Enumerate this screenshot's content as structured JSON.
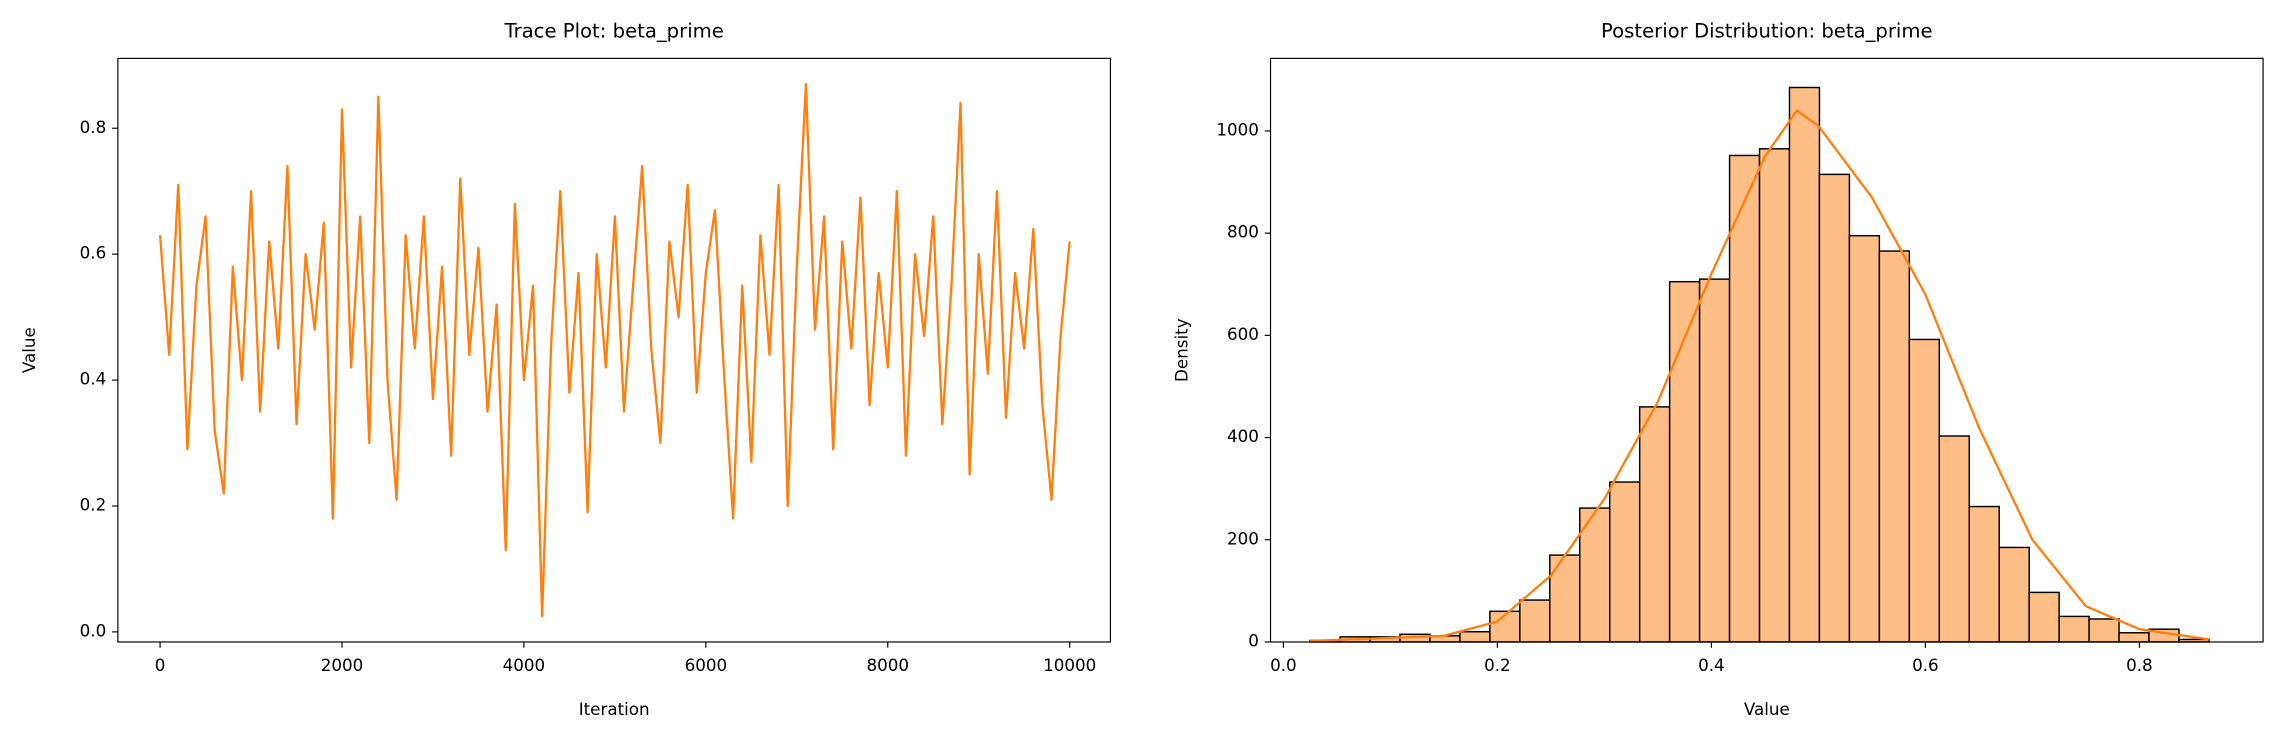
{
  "chart_data": [
    {
      "type": "line",
      "title": "Trace Plot: beta_prime",
      "xlabel": "Iteration",
      "ylabel": "Value",
      "xlim": [
        -464,
        10448
      ],
      "ylim": [
        -0.016,
        0.911
      ],
      "xticks": [
        0,
        2000,
        4000,
        6000,
        8000,
        10000
      ],
      "yticks": [
        {
          "value": 0,
          "label": "0.0"
        },
        0.2,
        0.4,
        0.6,
        0.8
      ],
      "grid": false,
      "x": [
        0,
        100,
        200,
        300,
        400,
        500,
        600,
        700,
        800,
        900,
        1000,
        1100,
        1200,
        1300,
        1400,
        1500,
        1600,
        1700,
        1800,
        1900,
        2000,
        2100,
        2200,
        2300,
        2400,
        2500,
        2600,
        2700,
        2800,
        2900,
        3000,
        3100,
        3200,
        3300,
        3400,
        3500,
        3600,
        3700,
        3800,
        3900,
        4000,
        4100,
        4200,
        4300,
        4400,
        4500,
        4600,
        4700,
        4800,
        4900,
        5000,
        5100,
        5200,
        5300,
        5400,
        5500,
        5600,
        5700,
        5800,
        5900,
        6000,
        6100,
        6200,
        6300,
        6400,
        6500,
        6600,
        6700,
        6800,
        6900,
        7000,
        7100,
        7200,
        7300,
        7400,
        7500,
        7600,
        7700,
        7800,
        7900,
        8000,
        8100,
        8200,
        8300,
        8400,
        8500,
        8600,
        8700,
        8800,
        8900,
        9000,
        9100,
        9200,
        9300,
        9400,
        9500,
        9600,
        9700,
        9800,
        9900,
        10000
      ],
      "series": [
        {
          "name": "beta_prime",
          "color": "#ff7f0e",
          "values": [
            0.63,
            0.44,
            0.71,
            0.29,
            0.55,
            0.66,
            0.32,
            0.22,
            0.58,
            0.4,
            0.7,
            0.35,
            0.62,
            0.45,
            0.74,
            0.33,
            0.6,
            0.48,
            0.65,
            0.18,
            0.83,
            0.42,
            0.66,
            0.3,
            0.85,
            0.4,
            0.21,
            0.63,
            0.45,
            0.66,
            0.37,
            0.58,
            0.28,
            0.72,
            0.44,
            0.61,
            0.35,
            0.52,
            0.13,
            0.68,
            0.4,
            0.55,
            0.025,
            0.46,
            0.7,
            0.38,
            0.57,
            0.19,
            0.6,
            0.42,
            0.66,
            0.35,
            0.55,
            0.74,
            0.45,
            0.3,
            0.62,
            0.5,
            0.71,
            0.38,
            0.57,
            0.67,
            0.41,
            0.18,
            0.55,
            0.27,
            0.63,
            0.44,
            0.71,
            0.2,
            0.58,
            0.87,
            0.48,
            0.66,
            0.29,
            0.62,
            0.45,
            0.69,
            0.36,
            0.57,
            0.42,
            0.7,
            0.28,
            0.6,
            0.47,
            0.66,
            0.33,
            0.55,
            0.84,
            0.25,
            0.6,
            0.41,
            0.7,
            0.34,
            0.57,
            0.45,
            0.64,
            0.36,
            0.21,
            0.47,
            0.62
          ]
        }
      ]
    },
    {
      "type": "histogram",
      "title": "Posterior Distribution: beta_prime",
      "xlabel": "Value",
      "ylabel": "Density",
      "xlim": [
        -0.012,
        0.9156
      ],
      "ylim": [
        0,
        1142
      ],
      "xticks": [
        {
          "value": 0,
          "label": "0.0"
        },
        0.2,
        0.4,
        0.6,
        0.8
      ],
      "yticks": [
        0,
        200,
        400,
        600,
        800,
        1000
      ],
      "grid": false,
      "color": "#ffbe86",
      "edgecolor": "#000000",
      "bins": [
        0.025,
        0.053,
        0.081,
        0.109,
        0.137,
        0.165,
        0.193,
        0.221,
        0.249,
        0.277,
        0.305,
        0.333,
        0.361,
        0.389,
        0.417,
        0.445,
        0.473,
        0.501,
        0.529,
        0.557,
        0.585,
        0.613,
        0.641,
        0.669,
        0.697,
        0.725,
        0.753,
        0.781,
        0.809,
        0.837,
        0.865
      ],
      "values": [
        3,
        10,
        10,
        15,
        12,
        20,
        60,
        82,
        170,
        262,
        313,
        460,
        705,
        710,
        952,
        965,
        1085,
        915,
        795,
        765,
        592,
        403,
        265,
        185,
        97,
        50,
        45,
        18,
        25,
        5
      ],
      "kde": {
        "color": "#ff7f0e",
        "x": [
          0.025,
          0.1,
          0.15,
          0.2,
          0.25,
          0.3,
          0.35,
          0.4,
          0.45,
          0.48,
          0.5,
          0.55,
          0.6,
          0.65,
          0.7,
          0.75,
          0.8,
          0.865
        ],
        "values": [
          2,
          8,
          12,
          40,
          130,
          280,
          470,
          720,
          950,
          1040,
          1010,
          870,
          680,
          420,
          200,
          70,
          25,
          5
        ]
      }
    }
  ]
}
